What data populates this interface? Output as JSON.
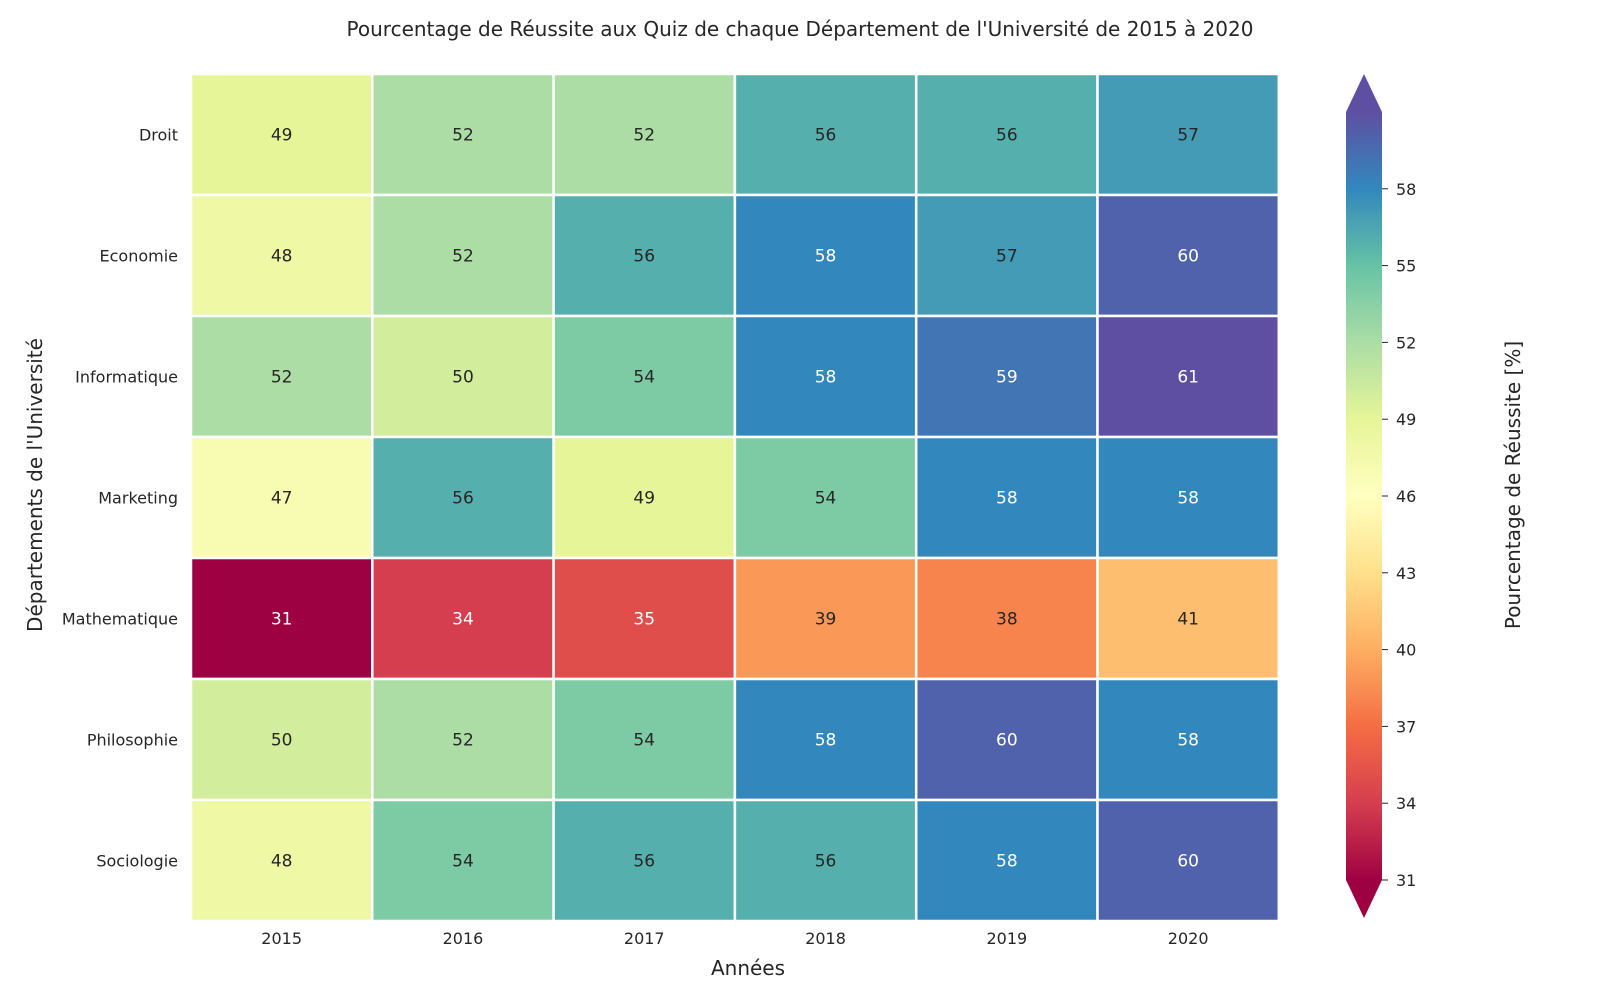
{
  "chart_data": {
    "type": "heatmap",
    "title": "Pourcentage de Réussite aux Quiz de chaque Département de l'Université de 2015 à 2020",
    "xlabel": "Années",
    "ylabel": "Départements de l'Université",
    "x": [
      "2015",
      "2016",
      "2017",
      "2018",
      "2019",
      "2020"
    ],
    "y": [
      "Droit",
      "Economie",
      "Informatique",
      "Marketing",
      "Mathematique",
      "Philosophie",
      "Sociologie"
    ],
    "values": [
      [
        49,
        52,
        52,
        56,
        56,
        57
      ],
      [
        48,
        52,
        56,
        58,
        57,
        60
      ],
      [
        52,
        50,
        54,
        58,
        59,
        61
      ],
      [
        47,
        56,
        49,
        54,
        58,
        58
      ],
      [
        31,
        34,
        35,
        39,
        38,
        41
      ],
      [
        50,
        52,
        54,
        58,
        60,
        58
      ],
      [
        48,
        54,
        56,
        56,
        58,
        60
      ]
    ],
    "colorbar": {
      "label": "Pourcentage de Réussite [%]",
      "min": 31,
      "max": 61,
      "ticks": [
        31,
        34,
        37,
        40,
        43,
        46,
        49,
        52,
        55,
        58
      ],
      "colormap": "Spectral",
      "extend": "both"
    },
    "annotations": "cell values shown"
  }
}
